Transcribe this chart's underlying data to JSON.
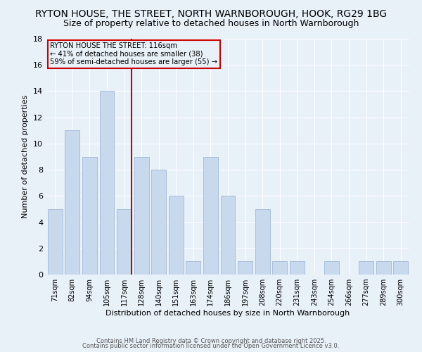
{
  "title": "RYTON HOUSE, THE STREET, NORTH WARNBOROUGH, HOOK, RG29 1BG",
  "subtitle": "Size of property relative to detached houses in North Warnborough",
  "xlabel": "Distribution of detached houses by size in North Warnborough",
  "ylabel": "Number of detached properties",
  "categories": [
    "71sqm",
    "82sqm",
    "94sqm",
    "105sqm",
    "117sqm",
    "128sqm",
    "140sqm",
    "151sqm",
    "163sqm",
    "174sqm",
    "186sqm",
    "197sqm",
    "208sqm",
    "220sqm",
    "231sqm",
    "243sqm",
    "254sqm",
    "266sqm",
    "277sqm",
    "289sqm",
    "300sqm"
  ],
  "values": [
    5,
    11,
    9,
    14,
    5,
    9,
    8,
    6,
    1,
    9,
    6,
    1,
    5,
    1,
    1,
    0,
    1,
    0,
    1,
    1,
    1
  ],
  "bar_color": "#c8d9ee",
  "bar_edge_color": "#a0b8d8",
  "vline_index": 4,
  "vline_color": "#cc0000",
  "ylim": [
    0,
    18
  ],
  "yticks": [
    0,
    2,
    4,
    6,
    8,
    10,
    12,
    14,
    16,
    18
  ],
  "annotation_line1": "RYTON HOUSE THE STREET: 116sqm",
  "annotation_line2": "← 41% of detached houses are smaller (38)",
  "annotation_line3": "59% of semi-detached houses are larger (55) →",
  "annotation_box_edgecolor": "#cc0000",
  "background_color": "#e8f0f8",
  "grid_color": "#ffffff",
  "footer_line1": "Contains HM Land Registry data © Crown copyright and database right 2025.",
  "footer_line2": "Contains public sector information licensed under the Open Government Licence v3.0.",
  "title_fontsize": 10,
  "subtitle_fontsize": 9,
  "bar_label_fontsize": 7,
  "axis_fontsize": 8
}
